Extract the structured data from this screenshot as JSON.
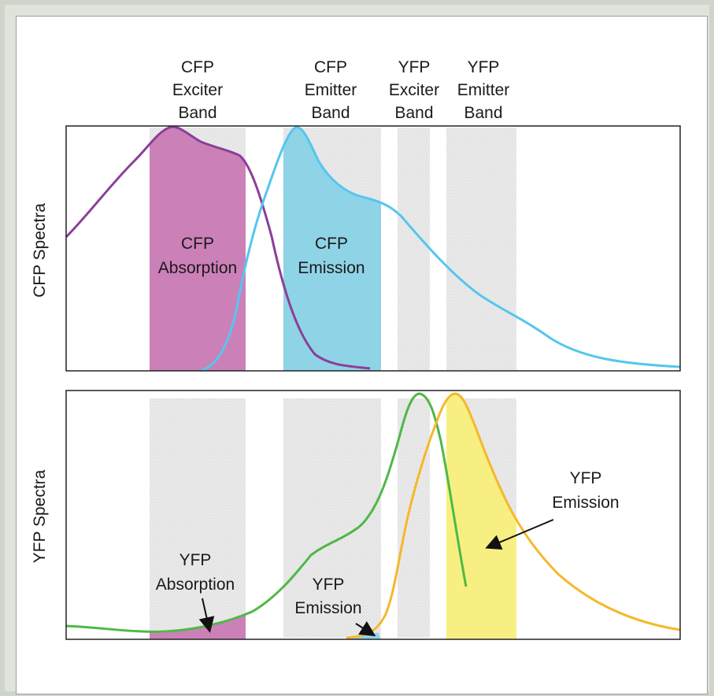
{
  "band_headers": {
    "cfp_exciter": [
      "CFP",
      "Exciter",
      "Band"
    ],
    "cfp_emitter": [
      "CFP",
      "Emitter",
      "Band"
    ],
    "yfp_exciter": [
      "YFP",
      "Exciter",
      "Band"
    ],
    "yfp_emitter": [
      "YFP",
      "Emitter",
      "Band"
    ]
  },
  "panels": {
    "top": {
      "axis_label": "CFP Spectra",
      "absorption_label": [
        "CFP",
        "Absorption"
      ],
      "emission_label": [
        "CFP",
        "Emission"
      ]
    },
    "bottom": {
      "axis_label": "YFP Spectra",
      "absorption_label": [
        "YFP",
        "Absorption"
      ],
      "emission_label_small": [
        "YFP",
        "Emission"
      ],
      "emission_label_large": [
        "YFP",
        "Emission"
      ]
    }
  },
  "colors": {
    "cfp_absorption_curve": "#8b3f98",
    "cfp_absorption_fill": "#cc80b8",
    "cfp_emission_curve": "#55c6ef",
    "cfp_emission_fill": "#8fd3e6",
    "yfp_absorption_curve": "#4fb848",
    "yfp_emission_curve": "#f5b82a",
    "yfp_emission_fill": "#f7ef82",
    "band_gray": "#ebebeb"
  }
}
